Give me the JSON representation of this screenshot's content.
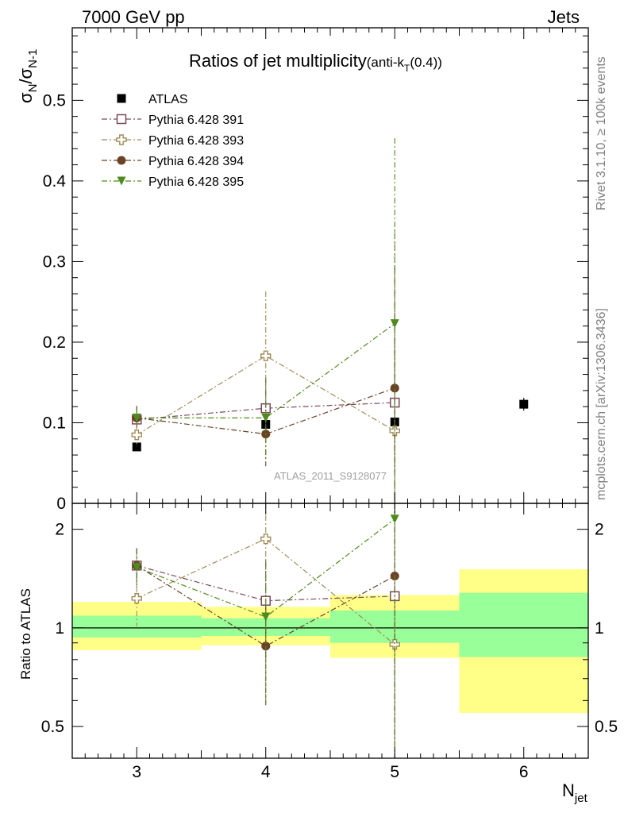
{
  "header": {
    "left": "7000 GeV pp",
    "right": "Jets"
  },
  "side_labels": {
    "rivet": "Rivet 3.1.10, ≥ 100k events",
    "mcplots": "mcplots.cern.ch [arXiv:1306.3436]"
  },
  "chart_data": {
    "type": "scatter",
    "title": "Ratios of jet multiplicity",
    "title_suffix": "(anti-k",
    "title_sub": "T",
    "title_suffix2": "(0.4))",
    "watermark": "ATLAS_2011_S9128077",
    "xlabel": "N",
    "xlabel_sub": "jet",
    "ylabel": "σ",
    "ylabel_sub1": "N",
    "ylabel_mid": "/σ",
    "ylabel_sub2": "N-1",
    "ratio_ylabel": "Ratio to ATLAS",
    "xlim": [
      2.5,
      6.5
    ],
    "ylim": [
      0,
      0.59
    ],
    "ratio_ylim": [
      0.4,
      2.4
    ],
    "ratio_log": true,
    "x_ticks": [
      {
        "v": 3,
        "label": "3"
      },
      {
        "v": 4,
        "label": "4"
      },
      {
        "v": 5,
        "label": "5"
      },
      {
        "v": 6,
        "label": "6"
      }
    ],
    "y_ticks": [
      {
        "v": 0,
        "label": "0"
      },
      {
        "v": 0.1,
        "label": "0.1"
      },
      {
        "v": 0.2,
        "label": "0.2"
      },
      {
        "v": 0.3,
        "label": "0.3"
      },
      {
        "v": 0.4,
        "label": "0.4"
      },
      {
        "v": 0.5,
        "label": "0.5"
      }
    ],
    "ratio_ticks": [
      {
        "v": 0.5,
        "label": "0.5"
      },
      {
        "v": 1,
        "label": "1"
      },
      {
        "v": 2,
        "label": "2"
      }
    ],
    "legend_position": "top-left",
    "series": [
      {
        "name": "ATLAS",
        "color": "#000000",
        "marker": "square-filled",
        "line": "none",
        "x": [
          3,
          4,
          5,
          6
        ],
        "y": [
          0.07,
          0.098,
          0.101,
          0.123
        ],
        "yerr": [
          0.004,
          0.005,
          0.006,
          0.008
        ],
        "ratio": [
          1,
          1,
          1,
          1
        ],
        "ratio_err": [
          0,
          0,
          0,
          0
        ]
      },
      {
        "name": "Pythia 6.428 391",
        "color": "#7a4a5a",
        "marker": "square-open",
        "line": "dashdot",
        "x": [
          3,
          4,
          5
        ],
        "y": [
          0.104,
          0.118,
          0.125
        ],
        "yerr": [
          0.015,
          0.035,
          0.08
        ],
        "ratio": [
          1.55,
          1.21,
          1.25
        ],
        "ratio_err": [
          0.2,
          0.4,
          0.8
        ]
      },
      {
        "name": "Pythia 6.428 393",
        "color": "#a08a58",
        "marker": "cross-open",
        "line": "dashdot",
        "x": [
          3,
          4,
          5
        ],
        "y": [
          0.085,
          0.183,
          0.09
        ],
        "yerr": [
          0.015,
          0.08,
          0.25
        ],
        "ratio": [
          1.23,
          1.87,
          0.89
        ],
        "ratio_err": [
          0.22,
          0.8,
          1.3
        ]
      },
      {
        "name": "Pythia 6.428 394",
        "color": "#6b4226",
        "marker": "circle-filled",
        "line": "dashdot",
        "x": [
          3,
          4,
          5
        ],
        "y": [
          0.106,
          0.086,
          0.143
        ],
        "yerr": [
          0.015,
          0.04,
          0.15
        ],
        "ratio": [
          1.55,
          0.88,
          1.44
        ],
        "ratio_err": [
          0.2,
          0.3,
          1.0
        ]
      },
      {
        "name": "Pythia 6.428 395",
        "color": "#4f8a1e",
        "marker": "triangle-down-filled",
        "line": "dashdot",
        "x": [
          3,
          4,
          5
        ],
        "y": [
          0.106,
          0.106,
          0.223
        ],
        "yerr": [
          0.012,
          0.05,
          0.23
        ],
        "ratio": [
          1.53,
          1.08,
          2.15
        ],
        "ratio_err": [
          0.2,
          0.5,
          1.9
        ]
      }
    ],
    "ratio_bands": [
      {
        "x0": 2.5,
        "x1": 3.5,
        "yellow": [
          0.855,
          1.2
        ],
        "green": [
          0.935,
          1.09
        ]
      },
      {
        "x0": 3.5,
        "x1": 4.5,
        "yellow": [
          0.885,
          1.16
        ],
        "green": [
          0.945,
          1.07
        ]
      },
      {
        "x0": 4.5,
        "x1": 5.5,
        "yellow": [
          0.81,
          1.26
        ],
        "green": [
          0.9,
          1.13
        ]
      },
      {
        "x0": 5.5,
        "x1": 6.5,
        "yellow": [
          0.55,
          1.51
        ],
        "green": [
          0.815,
          1.28
        ]
      }
    ]
  }
}
